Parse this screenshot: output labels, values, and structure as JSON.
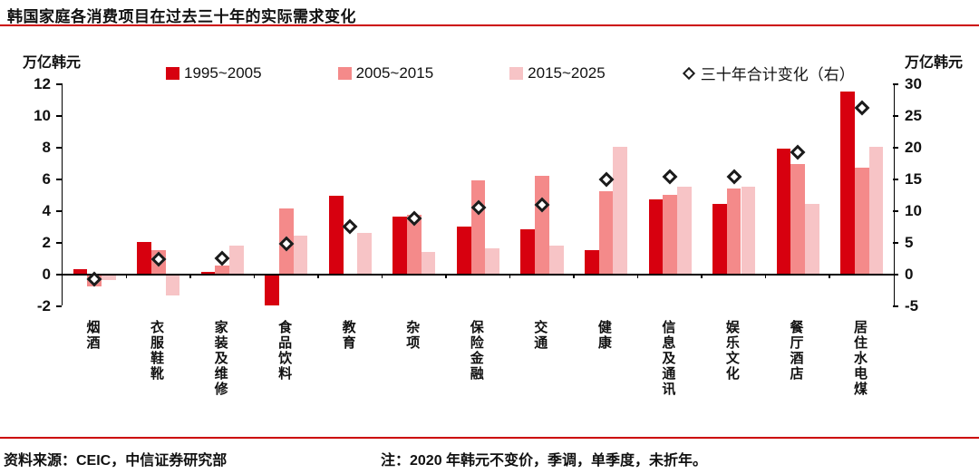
{
  "title": "韩国家庭各消费项目在过去三十年的实际需求变化",
  "rule_color": "#CC0000",
  "footer": {
    "source": "资料来源：CEIC，中信证券研究部",
    "note": "注：2020 年韩元不变价，季调，单季度，未折年。"
  },
  "chart_data": {
    "type": "bar",
    "title": "韩国家庭各消费项目在过去三十年的实际需求变化",
    "categories": [
      "烟酒",
      "衣服鞋靴",
      "家装及维修",
      "食品饮料",
      "教育",
      "杂项",
      "保险金融",
      "交通",
      "健康",
      "信息及通讯",
      "娱乐文化",
      "餐厅酒店",
      "居住水电煤"
    ],
    "series": [
      {
        "name": "1995~2005",
        "color": "#D7000F",
        "values": [
          0.3,
          2.0,
          0.1,
          -1.9,
          4.9,
          3.6,
          3.0,
          2.8,
          1.5,
          4.7,
          4.4,
          7.9,
          11.5
        ]
      },
      {
        "name": "2005~2015",
        "color": "#F48A8A",
        "values": [
          -0.7,
          1.5,
          0.5,
          4.1,
          0.0,
          3.7,
          5.9,
          6.2,
          5.2,
          5.0,
          5.4,
          6.9,
          6.7
        ]
      },
      {
        "name": "2015~2025",
        "color": "#F7C4C6",
        "values": [
          -0.3,
          -1.3,
          1.8,
          2.4,
          2.6,
          1.4,
          1.6,
          1.8,
          8.0,
          5.5,
          5.5,
          4.4,
          8.0
        ]
      }
    ],
    "scatter": {
      "name": "三十年合计变化（右）",
      "axis": "right",
      "marker": "diamond",
      "values": [
        -0.8,
        2.3,
        2.5,
        4.7,
        7.5,
        8.7,
        10.5,
        10.8,
        14.8,
        15.3,
        15.3,
        19.2,
        26.2
      ]
    },
    "axes": {
      "left": {
        "label": "万亿韩元",
        "min": -2,
        "max": 12,
        "step": 2,
        "ticks": [
          12,
          10,
          8,
          6,
          4,
          2,
          0,
          -2
        ]
      },
      "right": {
        "label": "万亿韩元",
        "min": -5,
        "max": 30,
        "step": 5,
        "ticks": [
          30,
          25,
          20,
          15,
          10,
          5,
          0,
          -5
        ]
      }
    },
    "legend_position": "top",
    "grid": false
  }
}
